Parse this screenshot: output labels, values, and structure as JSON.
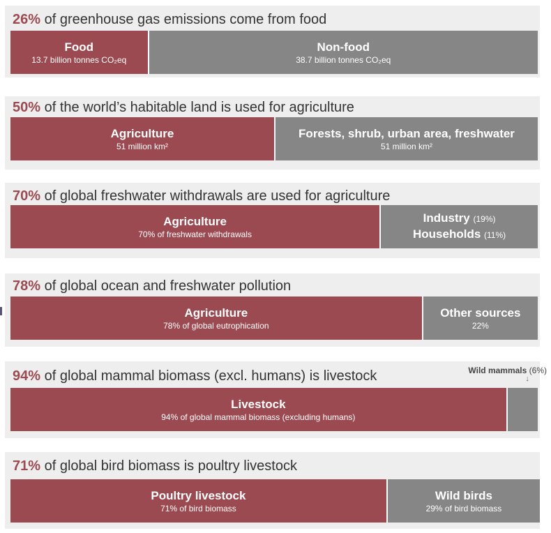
{
  "chart_data": [
    {
      "type": "bar",
      "title_pct": "26%",
      "title": "of greenhouse gas emissions come from food",
      "series": [
        {
          "label": "Food",
          "sublabel": "13.7 billion tonnes CO₂eq",
          "value": 26,
          "color": "#9c4a51"
        },
        {
          "label": "Non-food",
          "sublabel": "38.7 billion tonnes CO₂eq",
          "value": 74,
          "color": "#868686"
        }
      ]
    },
    {
      "type": "bar",
      "title_pct": "50%",
      "title": "of the world’s habitable land is used for agriculture",
      "series": [
        {
          "label": "Agriculture",
          "sublabel": "51 million km²",
          "value": 50,
          "color": "#9c4a51"
        },
        {
          "label": "Forests, shrub, urban area, freshwater",
          "sublabel": "51 million km²",
          "value": 50,
          "color": "#868686"
        }
      ]
    },
    {
      "type": "bar",
      "title_pct": "70%",
      "title": "of global freshwater withdrawals are used for agriculture",
      "series": [
        {
          "label": "Agriculture",
          "sublabel": "70% of freshwater withdrawals",
          "value": 70,
          "color": "#9c4a51"
        },
        {
          "label": "Industry",
          "label_note": "(19%)",
          "label2": "Households",
          "label2_note": "(11%)",
          "value": 30,
          "color": "#868686"
        }
      ]
    },
    {
      "type": "bar",
      "title_pct": "78%",
      "title": "of global ocean and freshwater pollution",
      "series": [
        {
          "label": "Agriculture",
          "sublabel": "78% of global eutrophication",
          "value": 78,
          "color": "#9c4a51"
        },
        {
          "label": "Other sources",
          "sublabel": "22%",
          "value": 22,
          "color": "#868686"
        }
      ]
    },
    {
      "type": "bar",
      "title_pct": "94%",
      "title": "of global mammal biomass (excl. humans) is livestock",
      "callout": {
        "label": "Wild mammals",
        "note": "(6%)"
      },
      "series": [
        {
          "label": "Livestock",
          "sublabel": "94% of global mammal biomass (excluding humans)",
          "value": 94,
          "color": "#9c4a51"
        },
        {
          "label": "",
          "sublabel": "",
          "value": 6,
          "color": "#868686"
        }
      ]
    },
    {
      "type": "bar",
      "title_pct": "71%",
      "title": "of global bird biomass is poultry livestock",
      "series": [
        {
          "label": "Poultry livestock",
          "sublabel": "71% of bird biomass",
          "value": 71,
          "color": "#9c4a51"
        },
        {
          "label": "Wild birds",
          "sublabel": "29% of bird biomass",
          "value": 29,
          "color": "#868686"
        }
      ]
    }
  ]
}
